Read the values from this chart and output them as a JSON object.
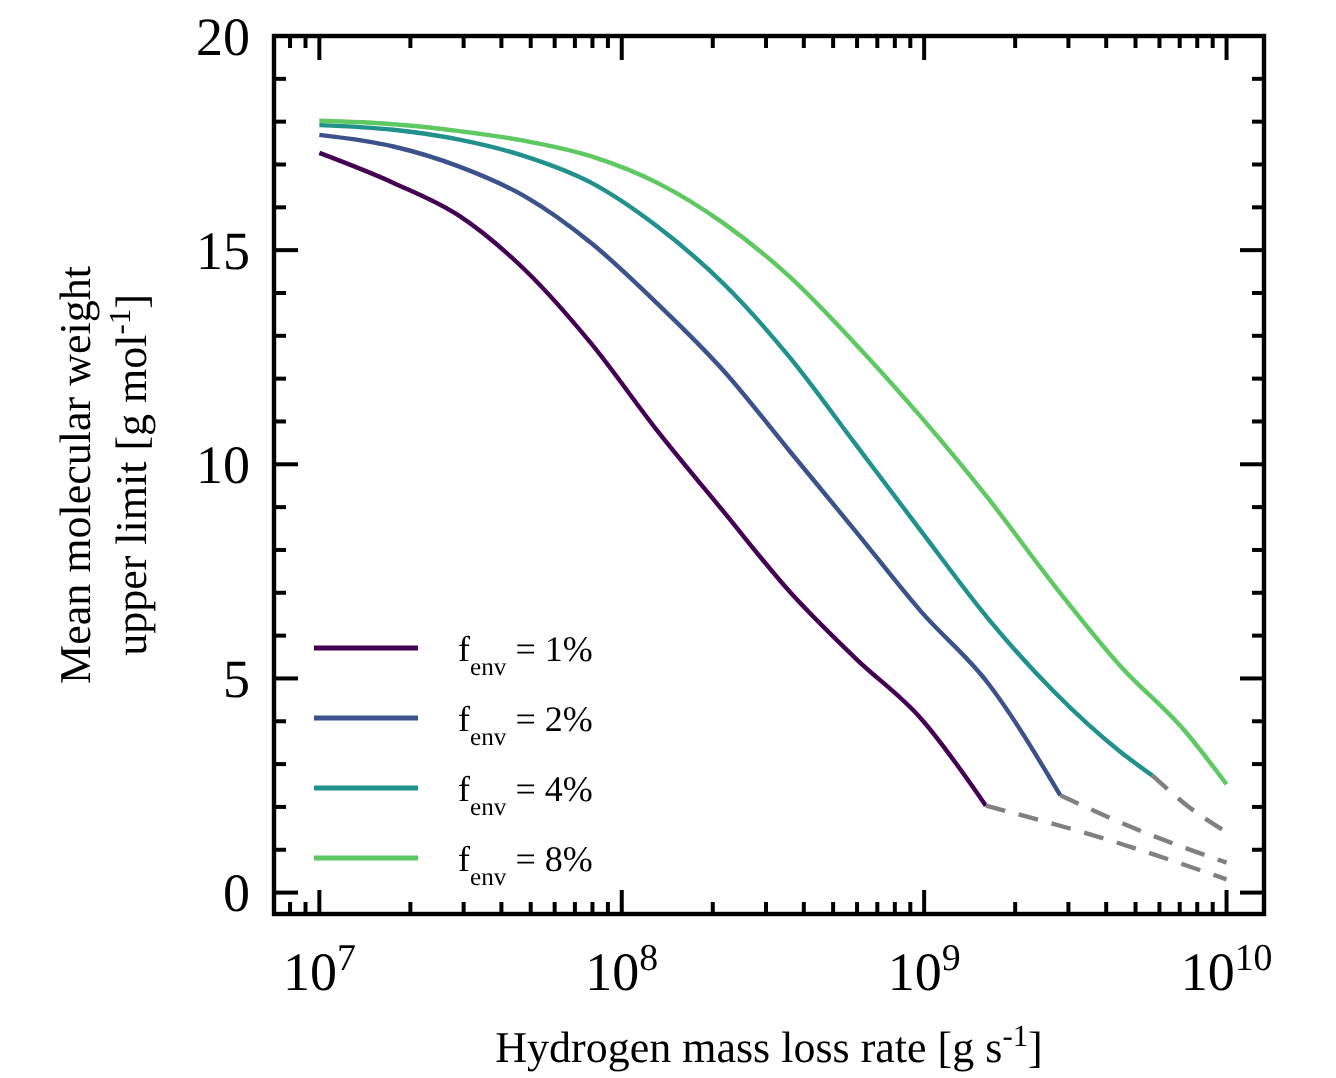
{
  "chart_data": {
    "type": "line",
    "xlabel": "Hydrogen mass loss rate [g s$^{-1}$]",
    "ylabel": "Mean molecular weight\nupper limit [g mol$^{-1}$]",
    "log": "x",
    "xlim": [
      7080000.0,
      13300000000.0
    ],
    "ylim": [
      -0.5,
      20
    ],
    "xticks": [
      {
        "value": 8000000.0,
        "label": null
      },
      {
        "value": 9000000.0,
        "label": null
      },
      {
        "value": 10000000.0,
        "label": "10$^{7}$"
      },
      {
        "value": 20000000.0,
        "label": null
      },
      {
        "value": 30000000.0,
        "label": null
      },
      {
        "value": 40000000.0,
        "label": null
      },
      {
        "value": 50000000.0,
        "label": null
      },
      {
        "value": 60000000.0,
        "label": null
      },
      {
        "value": 70000000.0,
        "label": null
      },
      {
        "value": 80000000.0,
        "label": null
      },
      {
        "value": 90000000.0,
        "label": null
      },
      {
        "value": 100000000.0,
        "label": "10$^{8}$"
      },
      {
        "value": 200000000.0,
        "label": null
      },
      {
        "value": 300000000.0,
        "label": null
      },
      {
        "value": 400000000.0,
        "label": null
      },
      {
        "value": 500000000.0,
        "label": null
      },
      {
        "value": 600000000.0,
        "label": null
      },
      {
        "value": 700000000.0,
        "label": null
      },
      {
        "value": 800000000.0,
        "label": null
      },
      {
        "value": 900000000.0,
        "label": null
      },
      {
        "value": 1000000000.0,
        "label": "10$^{9}$"
      },
      {
        "value": 2000000000.0,
        "label": null
      },
      {
        "value": 3000000000.0,
        "label": null
      },
      {
        "value": 4000000000.0,
        "label": null
      },
      {
        "value": 5000000000.0,
        "label": null
      },
      {
        "value": 6000000000.0,
        "label": null
      },
      {
        "value": 7000000000.0,
        "label": null
      },
      {
        "value": 8000000000.0,
        "label": null
      },
      {
        "value": 9000000000.0,
        "label": null
      },
      {
        "value": 10000000000.0,
        "label": "10$^{10}$"
      }
    ],
    "yticks": [
      0,
      {
        "value": 1,
        "label": null
      },
      {
        "value": 2,
        "label": null
      },
      {
        "value": 3,
        "label": null
      },
      {
        "value": 4,
        "label": null
      },
      5,
      {
        "value": 6,
        "label": null
      },
      {
        "value": 7,
        "label": null
      },
      {
        "value": 8,
        "label": null
      },
      {
        "value": 9,
        "label": null
      },
      10,
      {
        "value": 11,
        "label": null
      },
      {
        "value": 12,
        "label": null
      },
      {
        "value": 13,
        "label": null
      },
      {
        "value": 14,
        "label": null
      },
      15,
      {
        "value": 16,
        "label": null
      },
      {
        "value": 17,
        "label": null
      },
      {
        "value": 18,
        "label": null
      },
      {
        "value": 19,
        "label": null
      },
      20
    ],
    "legend": "bottom left",
    "grid": false,
    "line_style": "solid",
    "series": [
      {
        "name": "f$_{env}$ = 1%",
        "color": "#440154",
        "x": [
          10000000.0,
          17580000.0,
          29040000.0,
          47970000.0,
          79430000.0,
          131200000.0,
          216800000.0,
          358900000.0,
          592900000.0,
          977200000.0,
          1600000000.0
        ],
        "values": [
          17.27,
          16.57,
          15.8,
          14.53,
          12.81,
          10.78,
          8.9,
          7.03,
          5.47,
          4.06,
          2.03
        ]
      },
      {
        "name": "f$_{env}$ = 2%",
        "color": "#3b528b",
        "x": [
          10000000.0,
          17580000.0,
          29040000.0,
          47970000.0,
          79430000.0,
          131200000.0,
          216800000.0,
          358900000.0,
          592900000.0,
          977200000.0,
          1622000000.0,
          2820000000.0
        ],
        "values": [
          17.69,
          17.42,
          16.95,
          16.25,
          15.16,
          13.75,
          12.19,
          10.31,
          8.44,
          6.56,
          4.9,
          2.27
        ]
      },
      {
        "name": "f$_{env}$ = 4%",
        "color": "#21918c",
        "x": [
          10000000.0,
          17580000.0,
          29040000.0,
          47970000.0,
          79430000.0,
          131200000.0,
          216800000.0,
          358900000.0,
          592900000.0,
          977200000.0,
          1622000000.0,
          2680000000.0,
          4430000000.0,
          5690000000.0
        ],
        "values": [
          17.92,
          17.81,
          17.58,
          17.19,
          16.57,
          15.55,
          14.22,
          12.5,
          10.47,
          8.44,
          6.41,
          4.7,
          3.3,
          2.73
        ]
      },
      {
        "name": "f$_{env}$ = 8%",
        "color": "#5ec962",
        "x": [
          10000000.0,
          17580000.0,
          29040000.0,
          47970000.0,
          79430000.0,
          131200000.0,
          216800000.0,
          358900000.0,
          592900000.0,
          977200000.0,
          1622000000.0,
          2680000000.0,
          4430000000.0,
          7330000000.0,
          10000000000.0
        ],
        "values": [
          18.02,
          17.94,
          17.78,
          17.55,
          17.19,
          16.57,
          15.63,
          14.38,
          12.81,
          11.1,
          9.22,
          7.19,
          5.31,
          3.75,
          2.53
        ]
      },
      {
        "color": "#808080",
        "line_style": "dashed",
        "x": [
          1600000000.0,
          3981000000.0,
          10000000000.0
        ],
        "values": [
          2.03,
          1.25,
          0.31
        ]
      },
      {
        "color": "#808080",
        "line_style": "dashed",
        "x": [
          2820000000.0,
          5370000000.0,
          10000000000.0
        ],
        "values": [
          2.27,
          1.4,
          0.7
        ]
      },
      {
        "color": "#808080",
        "line_style": "dashed",
        "x": [
          5690000000.0,
          7413000000.0,
          10000000000.0
        ],
        "values": [
          2.73,
          2.03,
          1.41
        ]
      }
    ]
  }
}
